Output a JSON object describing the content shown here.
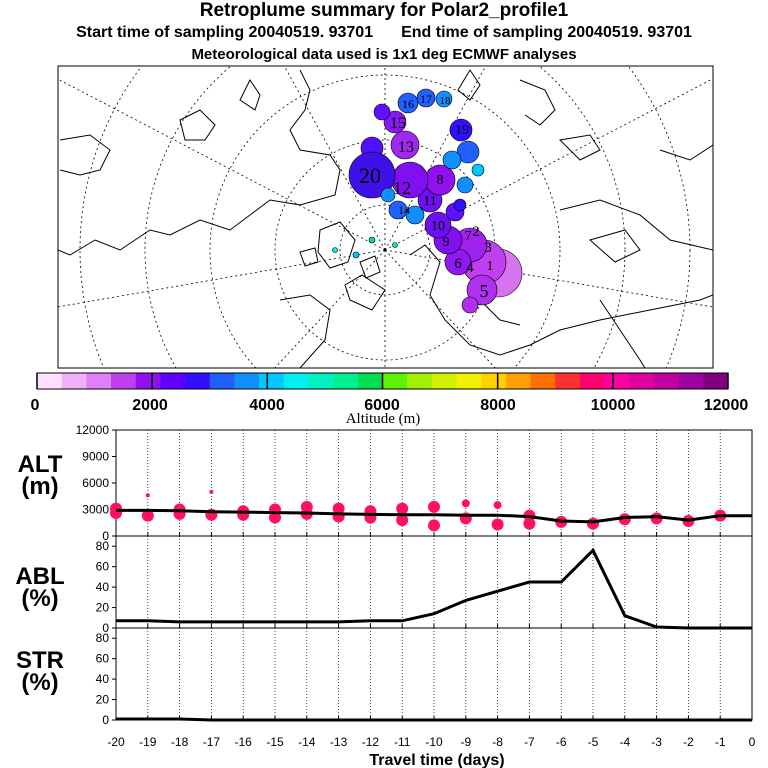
{
  "header": {
    "title": "Retroplume summary for Polar2_profile1",
    "start": "Start time of sampling 20040519. 93701",
    "end": "End time of sampling 20040519. 93701",
    "met": "Meteorological data used is 1x1 deg ECMWF analyses"
  },
  "colorbar": {
    "title": "Altitude (m)",
    "ticks": [
      "0",
      "2000",
      "4000",
      "6000",
      "8000",
      "10000",
      "12000"
    ],
    "colors": [
      "#ffe0ff",
      "#f0b0f8",
      "#e080f8",
      "#c040f0",
      "#9010f0",
      "#6000ff",
      "#3010ff",
      "#2060ff",
      "#1090ff",
      "#00c8ff",
      "#00f0f0",
      "#00f0c0",
      "#00f090",
      "#00e050",
      "#60f000",
      "#a0f000",
      "#d0f000",
      "#f0f000",
      "#ffd000",
      "#ffa000",
      "#ff7000",
      "#ff3030",
      "#ff0070",
      "#ff00a0",
      "#e000a0",
      "#c000a0",
      "#a000a0",
      "#800080"
    ]
  },
  "map": {
    "labels": [
      "20",
      "19",
      "18",
      "17",
      "16",
      "15",
      "14",
      "13",
      "12",
      "11",
      "10",
      "9",
      "8",
      "7",
      "6",
      "5",
      "4",
      "3",
      "2",
      "1"
    ]
  },
  "panels": {
    "alt": {
      "label1": "ALT",
      "label2": "(m)",
      "ticks": [
        "0",
        "3000",
        "6000",
        "9000",
        "12000"
      ]
    },
    "abl": {
      "label1": "ABL",
      "label2": "(%)",
      "ticks": [
        "0",
        "20",
        "40",
        "60",
        "80"
      ]
    },
    "str": {
      "label1": "STR",
      "label2": "(%)",
      "ticks": [
        "0",
        "20",
        "40",
        "60",
        "80"
      ]
    }
  },
  "xaxis": {
    "title": "Travel time (days)",
    "ticks": [
      "-20",
      "-19",
      "-18",
      "-17",
      "-16",
      "-15",
      "-14",
      "-13",
      "-12",
      "-11",
      "-10",
      "-9",
      "-8",
      "-7",
      "-6",
      "-5",
      "-4",
      "-3",
      "-2",
      "-1",
      "0"
    ]
  },
  "chart_data": {
    "type": "line",
    "x": [
      -20,
      -19,
      -18,
      -17,
      -16,
      -15,
      -14,
      -13,
      -12,
      -11,
      -10,
      -9,
      -8,
      -7,
      -6,
      -5,
      -4,
      -3,
      -2,
      -1,
      0
    ],
    "series": [
      {
        "name": "ALT (m)",
        "ylim": [
          0,
          12000
        ],
        "values": [
          2900,
          2900,
          2850,
          2750,
          2700,
          2650,
          2600,
          2500,
          2450,
          2400,
          2400,
          2350,
          2350,
          2200,
          1700,
          1600,
          2100,
          2200,
          1800,
          2300,
          2300
        ]
      },
      {
        "name": "ABL (%)",
        "ylim": [
          0,
          90
        ],
        "values": [
          7,
          7,
          6,
          6,
          6,
          6,
          6,
          6,
          7,
          7,
          14,
          27,
          36,
          45,
          45,
          76,
          12,
          1,
          0,
          0,
          0
        ]
      },
      {
        "name": "STR (%)",
        "ylim": [
          0,
          90
        ],
        "values": [
          1,
          1,
          1,
          0,
          0,
          0,
          0,
          0,
          0,
          0,
          0,
          0,
          0,
          0,
          0,
          0,
          0,
          0,
          0,
          0,
          0
        ]
      }
    ],
    "xlabel": "Travel time (days)",
    "altitude_dots_m": [
      [
        -20,
        2600
      ],
      [
        -20,
        3100
      ],
      [
        -19,
        2300
      ],
      [
        -19,
        4600
      ],
      [
        -18,
        2500
      ],
      [
        -18,
        3000
      ],
      [
        -17,
        2400
      ],
      [
        -17,
        5000
      ],
      [
        -16,
        2400
      ],
      [
        -16,
        2800
      ],
      [
        -15,
        2100
      ],
      [
        -15,
        3000
      ],
      [
        -14,
        2500
      ],
      [
        -14,
        3300
      ],
      [
        -13,
        2200
      ],
      [
        -13,
        3100
      ],
      [
        -12,
        2100
      ],
      [
        -12,
        2800
      ],
      [
        -11,
        1800
      ],
      [
        -11,
        3100
      ],
      [
        -10,
        1200
      ],
      [
        -10,
        3300
      ],
      [
        -9,
        2000
      ],
      [
        -9,
        3700
      ],
      [
        -8,
        1300
      ],
      [
        -8,
        3500
      ],
      [
        -7,
        1400
      ],
      [
        -7,
        2300
      ],
      [
        -6,
        1600
      ],
      [
        -5,
        1400
      ],
      [
        -4,
        1900
      ],
      [
        -3,
        2000
      ],
      [
        -2,
        1700
      ],
      [
        -1,
        2300
      ]
    ]
  }
}
